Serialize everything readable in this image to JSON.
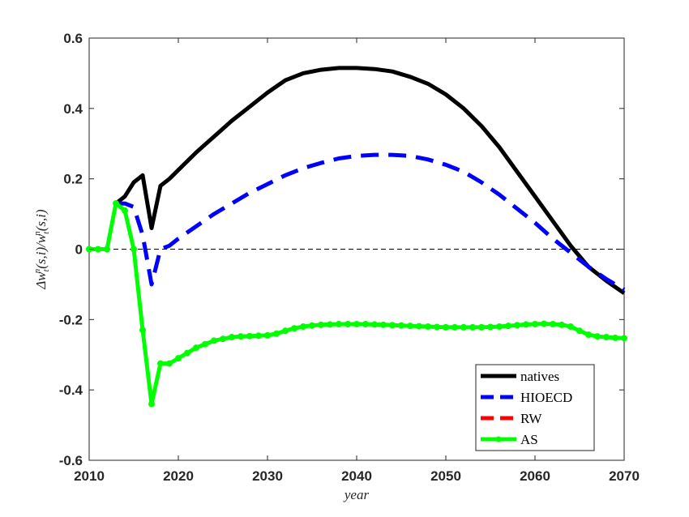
{
  "chart_data": {
    "type": "line",
    "title": "",
    "xlabel": "year",
    "ylabel": "Δw_t^n(s,i)/w_t^n(s,i)",
    "ylabel_parts": {
      "prefix": "Δw",
      "sub1": "t",
      "sup1": "n",
      "mid": "(s,i)/w",
      "sub2": "t",
      "sup2": "n",
      "suffix": "(s,i)"
    },
    "xlim": [
      2010,
      2070
    ],
    "ylim": [
      -0.6,
      0.6
    ],
    "xticks": [
      2010,
      2020,
      2030,
      2040,
      2050,
      2060,
      2070
    ],
    "yticks": [
      -0.6,
      -0.4,
      -0.2,
      0,
      0.2,
      0.4,
      0.6
    ],
    "ytick_labels": [
      "-0.6",
      "-0.4",
      "-0.2",
      "0",
      "0.2",
      "0.4",
      "0.6"
    ],
    "zero_line": true,
    "grid": false,
    "legend_position": "bottom-right",
    "series": [
      {
        "name": "natives",
        "color": "#000000",
        "style": "solid",
        "markers": false,
        "x": [
          2013,
          2014,
          2015,
          2016,
          2017,
          2018,
          2019,
          2020,
          2022,
          2024,
          2026,
          2028,
          2030,
          2032,
          2034,
          2036,
          2038,
          2040,
          2042,
          2044,
          2046,
          2048,
          2050,
          2052,
          2054,
          2056,
          2058,
          2060,
          2062,
          2064,
          2066,
          2068,
          2070
        ],
        "y": [
          0.13,
          0.15,
          0.19,
          0.21,
          0.06,
          0.18,
          0.2,
          0.225,
          0.275,
          0.32,
          0.365,
          0.405,
          0.445,
          0.48,
          0.5,
          0.51,
          0.515,
          0.515,
          0.512,
          0.505,
          0.49,
          0.47,
          0.44,
          0.4,
          0.35,
          0.29,
          0.22,
          0.15,
          0.08,
          0.01,
          -0.05,
          -0.09,
          -0.125
        ]
      },
      {
        "name": "HIOECD",
        "color": "#0000ff",
        "style": "dashed",
        "markers": false,
        "x": [
          2013,
          2014,
          2015,
          2016,
          2017,
          2018,
          2019,
          2020,
          2022,
          2024,
          2026,
          2028,
          2030,
          2032,
          2034,
          2036,
          2038,
          2040,
          2042,
          2044,
          2046,
          2048,
          2050,
          2052,
          2054,
          2056,
          2058,
          2060,
          2062,
          2064,
          2066,
          2068,
          2070
        ],
        "y": [
          0.13,
          0.13,
          0.12,
          0.04,
          -0.1,
          0.0,
          0.01,
          0.03,
          0.065,
          0.1,
          0.13,
          0.16,
          0.185,
          0.21,
          0.23,
          0.245,
          0.258,
          0.265,
          0.268,
          0.268,
          0.265,
          0.255,
          0.24,
          0.22,
          0.19,
          0.155,
          0.115,
          0.075,
          0.03,
          -0.01,
          -0.05,
          -0.085,
          -0.115
        ]
      },
      {
        "name": "RW",
        "color": "#ff0000",
        "style": "dashed",
        "markers": false,
        "x": [],
        "y": []
      },
      {
        "name": "AS",
        "color": "#00ff00",
        "style": "solid",
        "markers": true,
        "x": [
          2010,
          2011,
          2012,
          2013,
          2014,
          2015,
          2016,
          2017,
          2018,
          2019,
          2020,
          2021,
          2022,
          2023,
          2024,
          2025,
          2026,
          2027,
          2028,
          2029,
          2030,
          2031,
          2032,
          2033,
          2034,
          2035,
          2036,
          2037,
          2038,
          2039,
          2040,
          2041,
          2042,
          2043,
          2044,
          2045,
          2046,
          2047,
          2048,
          2049,
          2050,
          2051,
          2052,
          2053,
          2054,
          2055,
          2056,
          2057,
          2058,
          2059,
          2060,
          2061,
          2062,
          2063,
          2064,
          2065,
          2066,
          2067,
          2068,
          2069,
          2070
        ],
        "y": [
          0,
          0,
          0,
          0.13,
          0.11,
          0.0,
          -0.23,
          -0.44,
          -0.325,
          -0.325,
          -0.31,
          -0.295,
          -0.28,
          -0.27,
          -0.26,
          -0.255,
          -0.25,
          -0.248,
          -0.247,
          -0.246,
          -0.245,
          -0.24,
          -0.232,
          -0.225,
          -0.22,
          -0.217,
          -0.215,
          -0.214,
          -0.213,
          -0.213,
          -0.213,
          -0.213,
          -0.214,
          -0.215,
          -0.216,
          -0.217,
          -0.218,
          -0.219,
          -0.22,
          -0.221,
          -0.222,
          -0.222,
          -0.222,
          -0.222,
          -0.222,
          -0.221,
          -0.22,
          -0.218,
          -0.216,
          -0.214,
          -0.213,
          -0.212,
          -0.213,
          -0.215,
          -0.22,
          -0.232,
          -0.243,
          -0.248,
          -0.25,
          -0.252,
          -0.253
        ]
      }
    ]
  }
}
